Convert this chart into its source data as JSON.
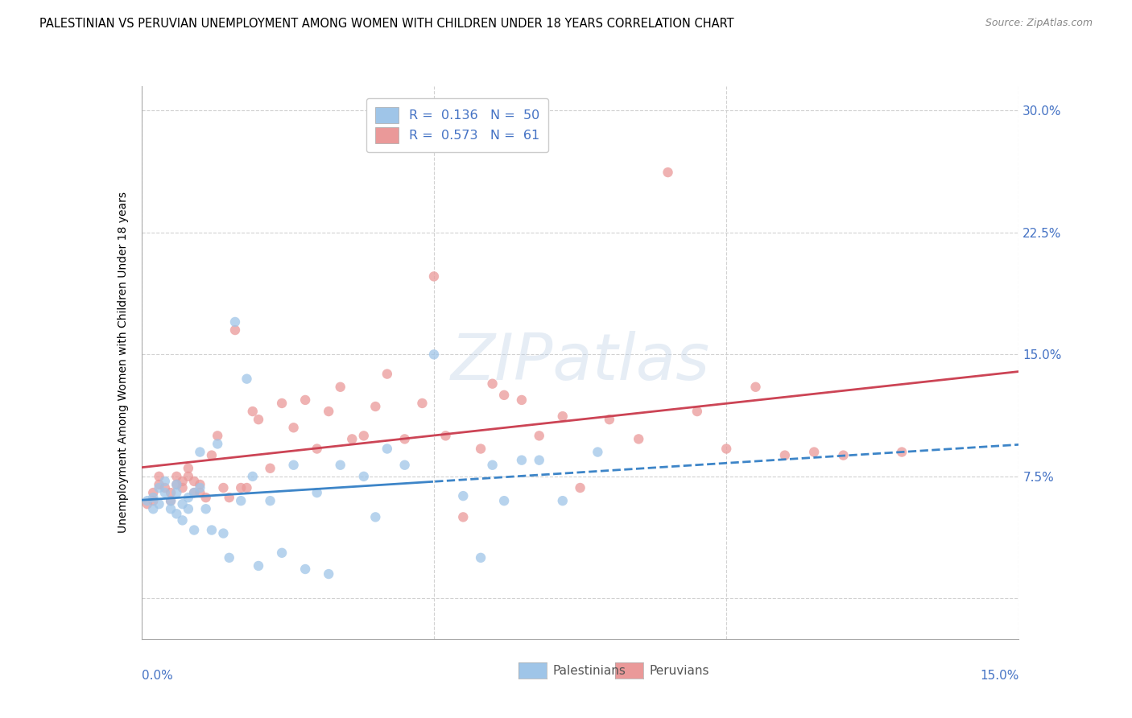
{
  "title": "PALESTINIAN VS PERUVIAN UNEMPLOYMENT AMONG WOMEN WITH CHILDREN UNDER 18 YEARS CORRELATION CHART",
  "source": "Source: ZipAtlas.com",
  "ylabel": "Unemployment Among Women with Children Under 18 years",
  "xmin": 0.0,
  "xmax": 0.15,
  "ymin": -0.025,
  "ymax": 0.315,
  "yticks": [
    0.0,
    0.075,
    0.15,
    0.225,
    0.3
  ],
  "ytick_labels": [
    "",
    "7.5%",
    "15.0%",
    "22.5%",
    "30.0%"
  ],
  "xtick_labels_left": "0.0%",
  "xtick_labels_right": "15.0%",
  "palestinian_R": 0.136,
  "palestinian_N": 50,
  "peruvian_R": 0.573,
  "peruvian_N": 61,
  "palestinian_color": "#9fc5e8",
  "peruvian_color": "#ea9999",
  "trend_palestinian_color": "#3d85c8",
  "trend_peruvian_color": "#cc4455",
  "background_color": "#ffffff",
  "grid_color": "#cccccc",
  "watermark": "ZIPatlas",
  "title_fontsize": 10.5,
  "tick_label_color": "#4472c4",
  "palestinians_x": [
    0.001,
    0.002,
    0.002,
    0.003,
    0.003,
    0.004,
    0.004,
    0.005,
    0.005,
    0.006,
    0.006,
    0.006,
    0.007,
    0.007,
    0.008,
    0.008,
    0.009,
    0.009,
    0.01,
    0.01,
    0.011,
    0.012,
    0.013,
    0.014,
    0.015,
    0.016,
    0.017,
    0.018,
    0.019,
    0.02,
    0.022,
    0.024,
    0.026,
    0.028,
    0.03,
    0.032,
    0.034,
    0.038,
    0.04,
    0.042,
    0.045,
    0.05,
    0.055,
    0.058,
    0.06,
    0.062,
    0.065,
    0.068,
    0.072,
    0.078
  ],
  "palestinians_y": [
    0.06,
    0.062,
    0.055,
    0.068,
    0.058,
    0.065,
    0.072,
    0.06,
    0.055,
    0.065,
    0.07,
    0.052,
    0.058,
    0.048,
    0.062,
    0.055,
    0.065,
    0.042,
    0.068,
    0.09,
    0.055,
    0.042,
    0.095,
    0.04,
    0.025,
    0.17,
    0.06,
    0.135,
    0.075,
    0.02,
    0.06,
    0.028,
    0.082,
    0.018,
    0.065,
    0.015,
    0.082,
    0.075,
    0.05,
    0.092,
    0.082,
    0.15,
    0.063,
    0.025,
    0.082,
    0.06,
    0.085,
    0.085,
    0.06,
    0.09
  ],
  "peruvians_x": [
    0.001,
    0.002,
    0.002,
    0.003,
    0.003,
    0.004,
    0.005,
    0.005,
    0.006,
    0.006,
    0.007,
    0.007,
    0.008,
    0.008,
    0.009,
    0.009,
    0.01,
    0.01,
    0.011,
    0.012,
    0.013,
    0.014,
    0.015,
    0.016,
    0.017,
    0.018,
    0.019,
    0.02,
    0.022,
    0.024,
    0.026,
    0.028,
    0.03,
    0.032,
    0.034,
    0.036,
    0.038,
    0.04,
    0.042,
    0.045,
    0.048,
    0.05,
    0.052,
    0.055,
    0.058,
    0.06,
    0.062,
    0.065,
    0.068,
    0.072,
    0.075,
    0.08,
    0.085,
    0.09,
    0.095,
    0.1,
    0.105,
    0.11,
    0.115,
    0.12,
    0.13
  ],
  "peruvians_y": [
    0.058,
    0.065,
    0.06,
    0.07,
    0.075,
    0.068,
    0.06,
    0.065,
    0.075,
    0.07,
    0.072,
    0.068,
    0.08,
    0.075,
    0.065,
    0.072,
    0.07,
    0.065,
    0.062,
    0.088,
    0.1,
    0.068,
    0.062,
    0.165,
    0.068,
    0.068,
    0.115,
    0.11,
    0.08,
    0.12,
    0.105,
    0.122,
    0.092,
    0.115,
    0.13,
    0.098,
    0.1,
    0.118,
    0.138,
    0.098,
    0.12,
    0.198,
    0.1,
    0.05,
    0.092,
    0.132,
    0.125,
    0.122,
    0.1,
    0.112,
    0.068,
    0.11,
    0.098,
    0.262,
    0.115,
    0.092,
    0.13,
    0.088,
    0.09,
    0.088,
    0.09
  ]
}
